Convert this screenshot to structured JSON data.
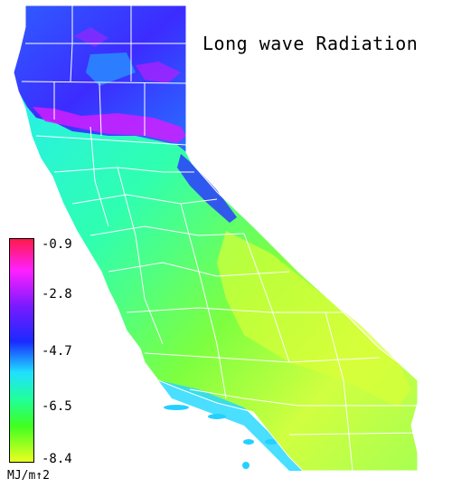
{
  "map": {
    "title": "Long wave Radiation",
    "legend": {
      "ticks": [
        "-0.9",
        "-2.8",
        "-4.7",
        "-6.5",
        "-8.4"
      ],
      "units": "MJ/m↑2",
      "colors": [
        "#ff1a4a",
        "#ff20ff",
        "#7a1aff",
        "#1a2aff",
        "#20e0ff",
        "#20ff9a",
        "#40ff20",
        "#eaff20"
      ]
    },
    "palette": {
      "north": "#3e3cff",
      "north_magenta": "#e020ff",
      "valley": "#2fffa0",
      "coast": "#20d8ff",
      "desert": "#c8ff40",
      "boundary": "#ffffff"
    }
  }
}
